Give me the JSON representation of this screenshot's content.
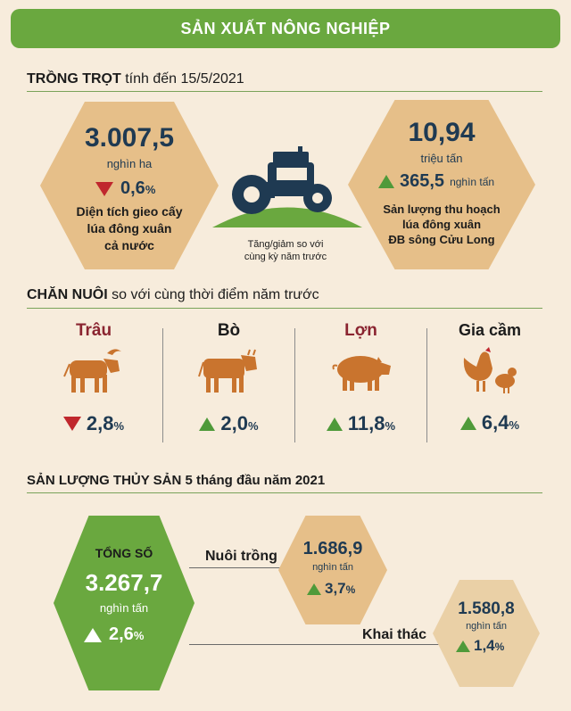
{
  "banner": {
    "title": "SẢN XUẤT NÔNG NGHIỆP"
  },
  "crops": {
    "heading": "TRỒNG TRỌT",
    "heading_sub": "tính đến 15/5/2021",
    "area": {
      "value": "3.007,5",
      "unit": "nghìn ha",
      "change": "0,6",
      "change_unit": "%",
      "direction": "down",
      "desc_1": "Diện tích gieo cấy",
      "desc_2": "lúa đông xuân",
      "desc_3": "cả nước"
    },
    "note_1": "Tăng/giảm so với",
    "note_2": "cùng kỳ năm trước",
    "yield": {
      "value": "10,94",
      "unit": "triệu tấn",
      "change": "365,5",
      "change_unit": "nghìn tấn",
      "direction": "up",
      "desc_1": "Sản lượng thu hoạch",
      "desc_2": "lúa đông xuân",
      "desc_3": "ĐB sông Cửu Long"
    }
  },
  "livestock": {
    "heading": "CHĂN NUÔI",
    "heading_sub": "so với cùng thời điểm năm trước",
    "items": [
      {
        "name": "Trâu",
        "value": "2,8",
        "unit": "%",
        "direction": "down",
        "name_color": "#8a2430"
      },
      {
        "name": "Bò",
        "value": "2,0",
        "unit": "%",
        "direction": "up",
        "name_color": "#1c1c1c"
      },
      {
        "name": "Lợn",
        "value": "11,8",
        "unit": "%",
        "direction": "up",
        "name_color": "#8a2430"
      },
      {
        "name": "Gia cầm",
        "value": "6,4",
        "unit": "%",
        "direction": "up",
        "name_color": "#1c1c1c"
      }
    ]
  },
  "fishery": {
    "heading": "SẢN LƯỢNG THỦY SẢN 5 tháng đầu năm 2021",
    "total": {
      "label": "TỔNG SỐ",
      "value": "3.267,7",
      "unit": "nghìn tấn",
      "change": "2,6",
      "change_unit": "%"
    },
    "farming": {
      "label": "Nuôi trồng",
      "value": "1.686,9",
      "unit": "nghìn tấn",
      "change": "3,7",
      "change_unit": "%"
    },
    "catching": {
      "label": "Khai thác",
      "value": "1.580,8",
      "unit": "nghìn tấn",
      "change": "1,4",
      "change_unit": "%"
    }
  },
  "colors": {
    "green": "#6aa83f",
    "tan": "#e6bf89",
    "navy": "#1f3a52",
    "red": "#c0272d",
    "brown": "#c9742e"
  }
}
